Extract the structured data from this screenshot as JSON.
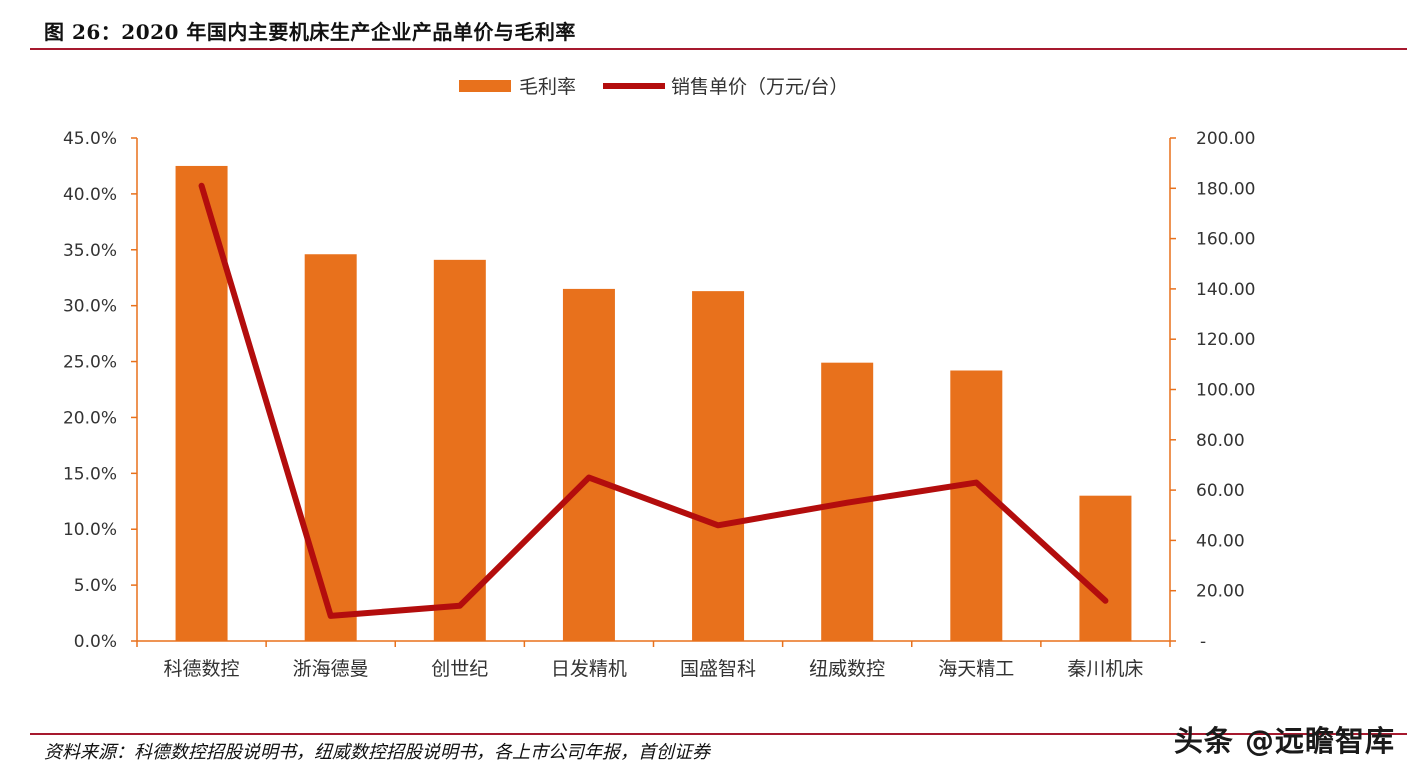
{
  "header": {
    "title": "图 26：2020 年国内主要机床生产企业产品单价与毛利率"
  },
  "footer": {
    "source": "资料来源：科德数控招股说明书，纽威数控招股说明书，各上市公司年报，首创证券",
    "watermark": "头条 @远瞻智库"
  },
  "colors": {
    "bar": "#e8711c",
    "line": "#b30d0d",
    "axis": "#e8711c",
    "rule": "#a6192e"
  },
  "chart_data": {
    "type": "bar",
    "categories": [
      "科德数控",
      "浙海德曼",
      "创世纪",
      "日发精机",
      "国盛智科",
      "纽威数控",
      "海天精工",
      "秦川机床"
    ],
    "series": [
      {
        "name": "毛利率",
        "type": "bar",
        "axis": "left",
        "values": [
          42.5,
          34.6,
          34.1,
          31.5,
          31.3,
          24.9,
          24.2,
          13.0
        ]
      },
      {
        "name": "销售单价（万元/台）",
        "type": "line",
        "axis": "right",
        "values": [
          181,
          10,
          14,
          65,
          46,
          55,
          63,
          16
        ]
      }
    ],
    "y_left": {
      "ylim": [
        0,
        45
      ],
      "ticks": [
        "0.0%",
        "5.0%",
        "10.0%",
        "15.0%",
        "20.0%",
        "25.0%",
        "30.0%",
        "35.0%",
        "40.0%",
        "45.0%"
      ]
    },
    "y_right": {
      "ylim": [
        0,
        200
      ],
      "ticks": [
        "-",
        "20.00",
        "40.00",
        "60.00",
        "80.00",
        "100.00",
        "120.00",
        "140.00",
        "160.00",
        "180.00",
        "200.00"
      ]
    },
    "legend": {
      "position": "top"
    },
    "grid": false
  }
}
